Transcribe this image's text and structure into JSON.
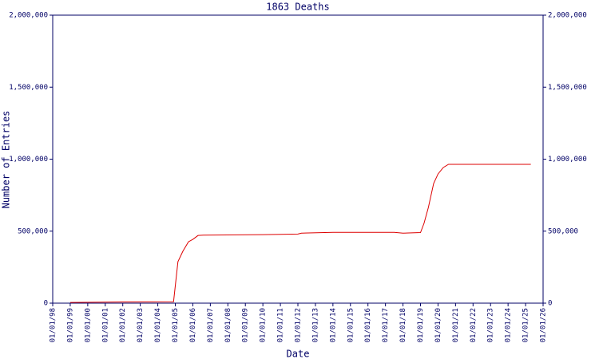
{
  "chart_data": {
    "type": "line",
    "title": "1863 Deaths",
    "x_label": "Date",
    "y_label": "Number of Entries",
    "x": [
      1999.0,
      2002.0,
      2004.9,
      2005.15,
      2005.43,
      2005.75,
      2006.0,
      2006.3,
      2006.6,
      2010.0,
      2012.0,
      2012.2,
      2014.0,
      2017.5,
      2018.0,
      2019.0,
      2019.2,
      2019.45,
      2019.75,
      2020.0,
      2020.3,
      2020.6,
      2025.3
    ],
    "series": [
      {
        "name": "1863 Deaths",
        "color": "#dd0000",
        "values": [
          5000,
          8000,
          10000,
          288000,
          360000,
          426000,
          443000,
          470000,
          472000,
          476000,
          480000,
          486000,
          492000,
          492000,
          486000,
          490000,
          554000,
          665000,
          831000,
          897000,
          942000,
          964000,
          964000
        ]
      }
    ],
    "xlim": [
      1998,
      2026
    ],
    "xticks": [
      {
        "value": 1998,
        "label": "01/01/98"
      },
      {
        "value": 1999,
        "label": "01/01/99"
      },
      {
        "value": 2000,
        "label": "01/01/00"
      },
      {
        "value": 2001,
        "label": "01/01/01"
      },
      {
        "value": 2002,
        "label": "01/01/02"
      },
      {
        "value": 2003,
        "label": "01/01/03"
      },
      {
        "value": 2004,
        "label": "01/01/04"
      },
      {
        "value": 2005,
        "label": "01/01/05"
      },
      {
        "value": 2006,
        "label": "01/01/06"
      },
      {
        "value": 2007,
        "label": "01/01/07"
      },
      {
        "value": 2008,
        "label": "01/01/08"
      },
      {
        "value": 2009,
        "label": "01/01/09"
      },
      {
        "value": 2010,
        "label": "01/01/10"
      },
      {
        "value": 2011,
        "label": "01/01/11"
      },
      {
        "value": 2012,
        "label": "01/01/12"
      },
      {
        "value": 2013,
        "label": "01/01/13"
      },
      {
        "value": 2014,
        "label": "01/01/14"
      },
      {
        "value": 2015,
        "label": "01/01/15"
      },
      {
        "value": 2016,
        "label": "01/01/16"
      },
      {
        "value": 2017,
        "label": "01/01/17"
      },
      {
        "value": 2018,
        "label": "01/01/18"
      },
      {
        "value": 2019,
        "label": "01/01/19"
      },
      {
        "value": 2020,
        "label": "01/01/20"
      },
      {
        "value": 2021,
        "label": "01/01/21"
      },
      {
        "value": 2022,
        "label": "01/01/22"
      },
      {
        "value": 2023,
        "label": "01/01/23"
      },
      {
        "value": 2024,
        "label": "01/01/24"
      },
      {
        "value": 2025,
        "label": "01/01/25"
      },
      {
        "value": 2026,
        "label": "01/01/26"
      }
    ],
    "ylim": [
      0,
      2000000
    ],
    "yticks": [
      0,
      {
        "value": 500000,
        "label": "500,000"
      },
      {
        "value": 1000000,
        "label": "1,000,000"
      },
      {
        "value": 1500000,
        "label": "1,500,000"
      },
      {
        "value": 2000000,
        "label": "2,000,000"
      }
    ],
    "y2lim": [
      0,
      2000000
    ],
    "y2ticks": [
      0,
      {
        "value": 500000,
        "label": "500,000"
      },
      {
        "value": 1000000,
        "label": "1,000,000"
      },
      {
        "value": 1500000,
        "label": "1,500,000"
      },
      {
        "value": 2000000,
        "label": "2,000,000"
      }
    ],
    "grid": false
  }
}
